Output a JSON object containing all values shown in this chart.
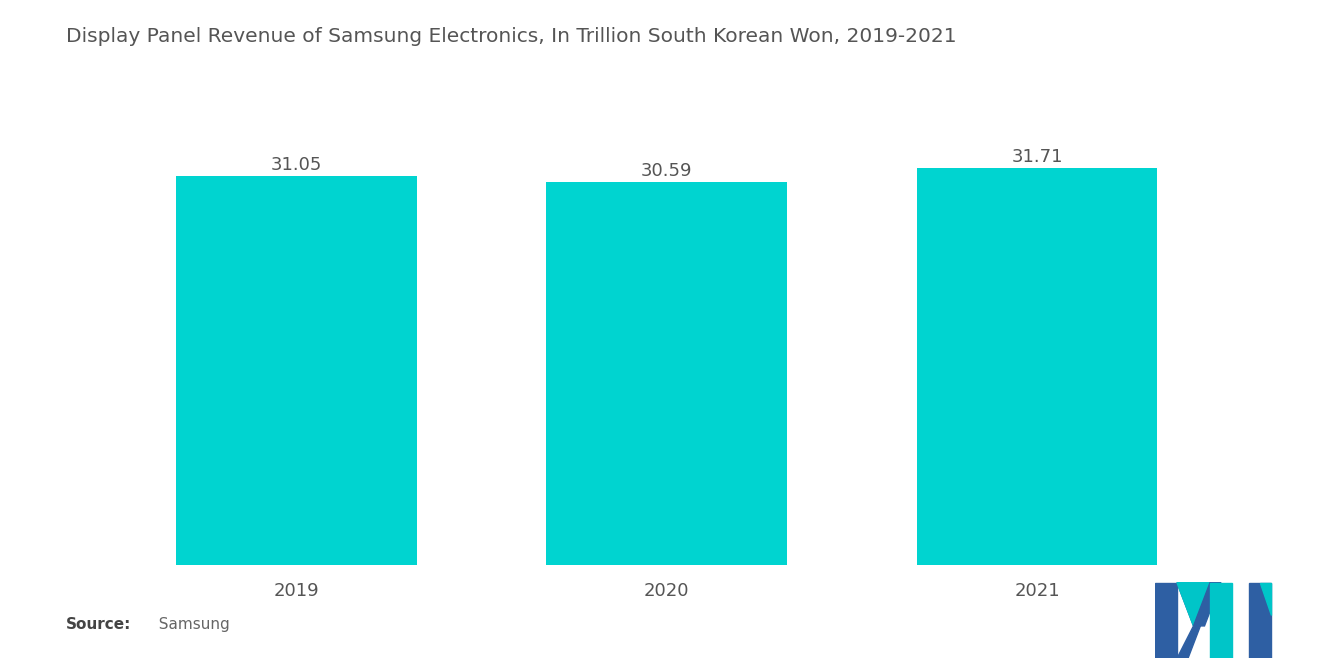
{
  "title": "Display Panel Revenue of Samsung Electronics, In Trillion South Korean Won, 2019-2021",
  "categories": [
    "2019",
    "2020",
    "2021"
  ],
  "values": [
    31.05,
    30.59,
    31.71
  ],
  "bar_color": "#00D4D0",
  "background_color": "#ffffff",
  "title_fontsize": 14.5,
  "label_fontsize": 13,
  "tick_fontsize": 13,
  "source_bold": "Source:",
  "source_normal": "  Samsung",
  "ylim": [
    0,
    34.5
  ],
  "bar_width": 0.65,
  "text_color": "#555555",
  "logo_blue": "#2E5FA3",
  "logo_teal": "#00C5C8"
}
